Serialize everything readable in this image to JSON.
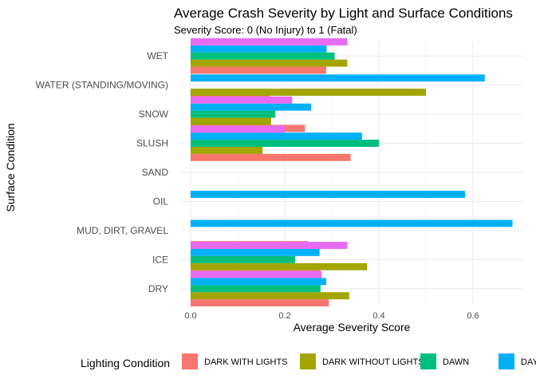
{
  "chart_data": {
    "type": "bar",
    "orientation": "horizontal",
    "title": "Average Crash Severity by Light and Surface Conditions",
    "subtitle": "Severity Score: 0 (No Injury) to 1 (Fatal)",
    "xlabel": "Average Severity Score",
    "ylabel": "Surface Condition",
    "xlim": [
      0,
      0.7
    ],
    "xticks": [
      "0.0",
      "0.2",
      "0.4",
      "0.6"
    ],
    "xtick_values": [
      0,
      0.2,
      0.4,
      0.6
    ],
    "grid": true,
    "legend_position": "bottom",
    "legend_title": "Lighting Condition",
    "categories": [
      "WET",
      "WATER (STANDING/MOVING)",
      "SNOW",
      "SLUSH",
      "SAND",
      "OIL",
      "MUD, DIRT, GRAVEL",
      "ICE",
      "DRY"
    ],
    "series": [
      {
        "name": "DARK WITH LIGHTS",
        "color": "#F8766D",
        "values": [
          0.288,
          0.167,
          0.243,
          0.34,
          null,
          null,
          0.25,
          0.275,
          0.294
        ]
      },
      {
        "name": "DARK WITHOUT LIGHTS",
        "color": "#A3A500",
        "values": [
          0.333,
          0.5,
          0.171,
          0.153,
          null,
          null,
          null,
          0.375,
          0.337
        ]
      },
      {
        "name": "DAWN",
        "color": "#00BF7D",
        "values": [
          0.306,
          null,
          0.18,
          0.4,
          null,
          null,
          null,
          0.222,
          0.276
        ]
      },
      {
        "name": "DAYLIGHT",
        "color": "#00B0F6",
        "values": [
          0.289,
          0.625,
          0.256,
          0.364,
          null,
          0.583,
          0.684,
          0.274,
          0.288
        ]
      },
      {
        "name": "",
        "color": "#E76BF3",
        "values": [
          0.333,
          null,
          0.216,
          0.2,
          null,
          null,
          null,
          0.333,
          0.278
        ]
      }
    ],
    "legend_visible_labels": [
      "DARK WITH LIGHTS",
      "DARK WITHOUT LIGHTS",
      "DAWN",
      "DAY"
    ]
  }
}
